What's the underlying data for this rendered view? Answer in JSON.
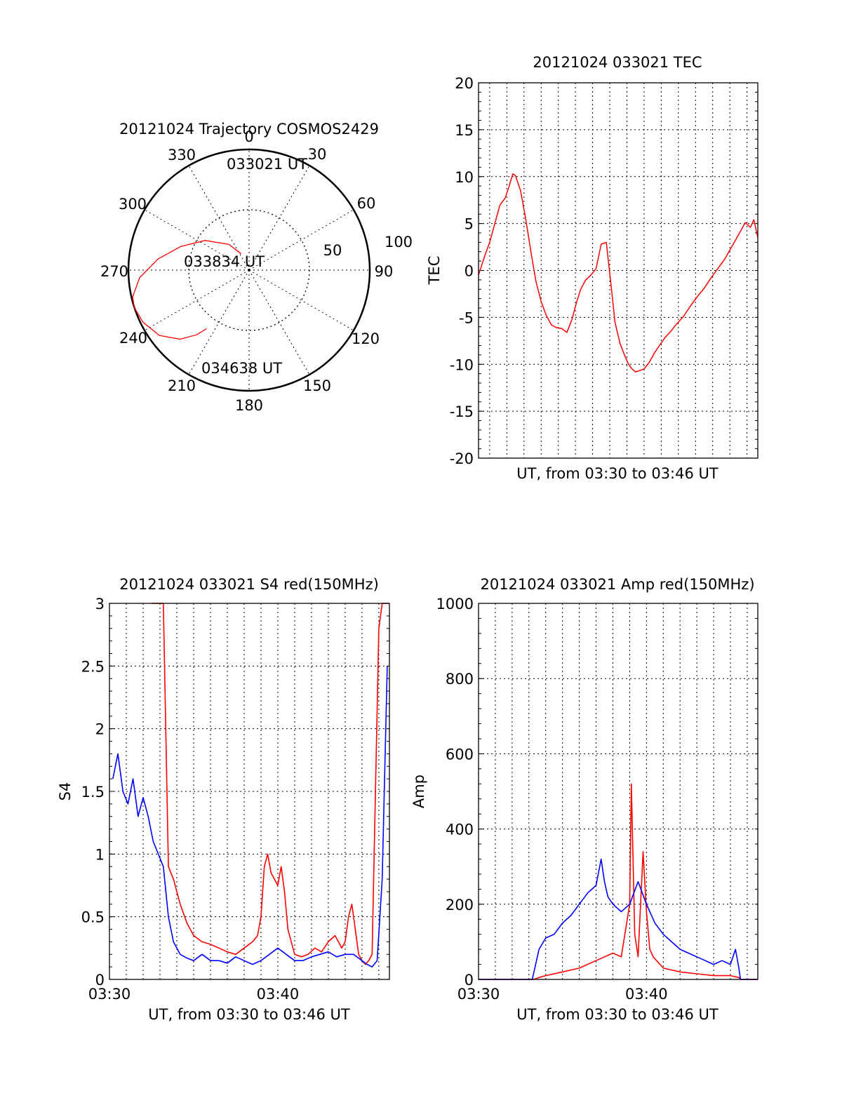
{
  "colors": {
    "red": "#ff0000",
    "blue": "#0000ff",
    "axis": "#000000"
  },
  "chart_data": [
    {
      "type": "polar",
      "title": "20121024 Trajectory COSMOS2429",
      "angle_labels": [
        "0",
        "30",
        "60",
        "90",
        "120",
        "150",
        "180",
        "210",
        "240",
        "270",
        "300",
        "330"
      ],
      "radial_labels": [
        "50",
        "100"
      ],
      "radial_range": [
        0,
        100
      ],
      "series": [
        {
          "color": "red",
          "points": [
            [
              334,
              15
            ],
            [
              322,
              27
            ],
            [
              304,
              44
            ],
            [
              289,
              60
            ],
            [
              277,
              76
            ],
            [
              266,
              91
            ],
            [
              257,
              99
            ],
            [
              252,
              100
            ],
            [
              244,
              98
            ],
            [
              234,
              92
            ],
            [
              225,
              81
            ],
            [
              219,
              69
            ],
            [
              216,
              60
            ]
          ]
        }
      ],
      "annotations": [
        "033021 UT",
        "033834 UT",
        "034638 UT"
      ]
    },
    {
      "type": "line",
      "title": "20121024 033021 TEC",
      "xlabel": "UT, from 03:30 to 03:46 UT",
      "ylabel": "TEC",
      "xlim": [
        0.35,
        16.63
      ],
      "ylim": [
        -20,
        20
      ],
      "yticks": [
        "-20",
        "-15",
        "-10",
        "-5",
        "0",
        "5",
        "10",
        "15",
        "20"
      ],
      "grid": true,
      "series": [
        {
          "color": "red",
          "x": [
            0.35,
            0.7,
            1.0,
            1.3,
            1.6,
            1.9,
            2.1,
            2.35,
            2.5,
            2.8,
            3.1,
            3.4,
            3.7,
            4.0,
            4.3,
            4.6,
            4.9,
            5.2,
            5.5,
            5.8,
            6.05,
            6.3,
            6.6,
            6.9,
            7.2,
            7.5,
            7.8,
            8.1,
            8.3,
            8.6,
            8.9,
            9.1,
            9.3,
            9.5,
            9.7,
            10.0,
            10.3,
            10.6,
            10.9,
            11.2,
            11.5,
            11.9,
            12.3,
            12.7,
            13.1,
            13.5,
            13.9,
            14.3,
            14.7,
            15.1,
            15.5,
            15.9,
            16.2,
            16.4,
            16.63
          ],
          "y": [
            -0.5,
            1.5,
            3.0,
            5.0,
            7.0,
            7.7,
            8.8,
            10.3,
            10.1,
            8.5,
            5.5,
            2.0,
            -1.2,
            -3.3,
            -4.8,
            -5.8,
            -6.1,
            -6.2,
            -6.6,
            -5.2,
            -3.5,
            -2.0,
            -1.0,
            -0.5,
            0.2,
            2.8,
            3.0,
            -2.0,
            -5.5,
            -7.8,
            -9.2,
            -10.0,
            -10.5,
            -10.8,
            -10.7,
            -10.5,
            -9.8,
            -8.8,
            -8.0,
            -7.2,
            -6.6,
            -5.7,
            -4.9,
            -3.8,
            -2.8,
            -1.9,
            -0.8,
            0.2,
            1.2,
            2.5,
            3.8,
            5.1,
            4.6,
            5.4,
            3.5
          ]
        }
      ]
    },
    {
      "type": "line",
      "title": "20121024 033021 S4 red(150MHz)",
      "xlabel": "UT, from 03:30 to 03:46 UT",
      "ylabel": "S4",
      "xlim": [
        0,
        16.63
      ],
      "ylim": [
        0,
        3
      ],
      "xticks": [
        "03:30",
        "03:40"
      ],
      "yticks": [
        "0",
        "0.5",
        "1",
        "1.5",
        "2",
        "2.5",
        "3"
      ],
      "grid": true,
      "series": [
        {
          "color": "red",
          "x": [
            2.5,
            2.7,
            2.8,
            3.0,
            3.2,
            3.5,
            3.8,
            4.2,
            4.6,
            5.0,
            5.5,
            6.0,
            6.5,
            7.0,
            7.5,
            8.0,
            8.5,
            8.8,
            9.0,
            9.2,
            9.4,
            9.6,
            9.8,
            10.0,
            10.2,
            10.4,
            10.6,
            10.8,
            11.0,
            11.4,
            11.8,
            12.2,
            12.6,
            13.0,
            13.4,
            13.8,
            14.0,
            14.2,
            14.4,
            14.6,
            14.8,
            15.0,
            15.2,
            15.4,
            15.6,
            15.8,
            16.0,
            16.2,
            16.4,
            16.6
          ],
          "y": [
            3.0,
            3.0,
            3.0,
            3.0,
            3.0,
            0.9,
            0.8,
            0.6,
            0.45,
            0.35,
            0.3,
            0.28,
            0.25,
            0.22,
            0.2,
            0.25,
            0.3,
            0.35,
            0.5,
            0.9,
            1.0,
            0.85,
            0.8,
            0.75,
            0.9,
            0.7,
            0.4,
            0.3,
            0.2,
            0.18,
            0.2,
            0.25,
            0.22,
            0.3,
            0.35,
            0.25,
            0.3,
            0.5,
            0.6,
            0.4,
            0.2,
            0.15,
            0.12,
            0.15,
            0.2,
            1.5,
            2.8,
            3.0,
            3.0,
            3.0
          ]
        },
        {
          "color": "blue",
          "x": [
            0.2,
            0.5,
            0.8,
            1.1,
            1.4,
            1.7,
            2.0,
            2.3,
            2.6,
            2.9,
            3.2,
            3.5,
            3.8,
            4.2,
            4.6,
            5.0,
            5.5,
            6.0,
            6.5,
            7.0,
            7.5,
            8.0,
            8.5,
            9.0,
            9.5,
            10.0,
            10.5,
            11.0,
            11.5,
            12.0,
            12.5,
            13.0,
            13.5,
            14.0,
            14.5,
            15.0,
            15.3,
            15.6,
            15.9,
            16.2,
            16.5
          ],
          "y": [
            1.6,
            1.8,
            1.5,
            1.4,
            1.6,
            1.3,
            1.45,
            1.3,
            1.1,
            1.0,
            0.9,
            0.5,
            0.3,
            0.2,
            0.17,
            0.15,
            0.2,
            0.15,
            0.15,
            0.13,
            0.18,
            0.15,
            0.12,
            0.15,
            0.2,
            0.25,
            0.2,
            0.15,
            0.15,
            0.18,
            0.2,
            0.22,
            0.18,
            0.2,
            0.2,
            0.15,
            0.12,
            0.1,
            0.15,
            0.8,
            2.5
          ]
        }
      ]
    },
    {
      "type": "line",
      "title": "20121024 033021 Amp red(150MHz)",
      "xlabel": "UT, from 03:30 to 03:46 UT",
      "ylabel": "Amp",
      "xlim": [
        0,
        16.63
      ],
      "ylim": [
        0,
        1000
      ],
      "xticks": [
        "03:30",
        "03:40"
      ],
      "yticks": [
        "0",
        "200",
        "400",
        "600",
        "800",
        "1000"
      ],
      "grid": true,
      "series": [
        {
          "color": "red",
          "x": [
            0,
            3.3,
            3.6,
            4.0,
            5.0,
            6.0,
            7.0,
            7.5,
            8.0,
            8.5,
            9.0,
            9.1,
            9.3,
            9.5,
            9.8,
            10.0,
            10.2,
            10.4,
            10.6,
            11.0,
            12.0,
            13.0,
            14.0,
            15.0,
            15.5,
            15.6,
            16.63
          ],
          "y": [
            0,
            0,
            5,
            10,
            20,
            30,
            50,
            60,
            70,
            60,
            200,
            520,
            120,
            60,
            340,
            180,
            80,
            60,
            50,
            30,
            20,
            15,
            10,
            10,
            5,
            0,
            0
          ]
        },
        {
          "color": "blue",
          "x": [
            0,
            3.2,
            3.4,
            3.6,
            4.0,
            4.5,
            5.0,
            5.5,
            6.0,
            6.5,
            7.0,
            7.3,
            7.5,
            7.7,
            8.0,
            8.5,
            9.0,
            9.5,
            10.0,
            10.5,
            11.0,
            11.5,
            12.0,
            12.5,
            13.0,
            13.5,
            14.0,
            14.5,
            15.0,
            15.3,
            15.5,
            15.6,
            16.63
          ],
          "y": [
            0,
            0,
            40,
            80,
            110,
            120,
            150,
            170,
            200,
            230,
            250,
            320,
            260,
            220,
            200,
            180,
            200,
            260,
            200,
            150,
            120,
            100,
            80,
            70,
            60,
            50,
            40,
            50,
            40,
            80,
            30,
            0,
            0
          ]
        }
      ]
    }
  ]
}
